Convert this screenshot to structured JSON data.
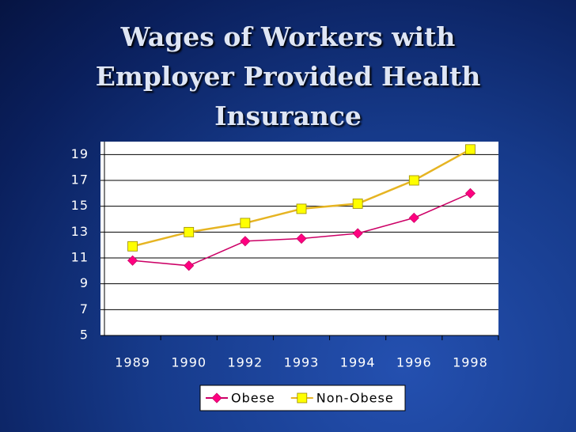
{
  "chart_data": {
    "type": "line",
    "title": "Wages of Workers with Employer Provided Health Insurance",
    "categories": [
      "1989",
      "1990",
      "1992",
      "1993",
      "1994",
      "1996",
      "1998"
    ],
    "series": [
      {
        "name": "Obese",
        "color": "#cc0066",
        "marker_color": "#ff0080",
        "marker": "diamond",
        "values": [
          10.8,
          10.4,
          12.3,
          12.5,
          12.9,
          14.1,
          16.0
        ]
      },
      {
        "name": "Non-Obese",
        "color": "#e6b422",
        "marker_color": "#ffff00",
        "marker": "square",
        "values": [
          11.9,
          13.0,
          13.7,
          14.8,
          15.2,
          17.0,
          19.4
        ]
      }
    ],
    "ylim": [
      5,
      20
    ],
    "yticks": [
      5,
      7,
      9,
      11,
      13,
      15,
      17,
      19
    ],
    "grid": true,
    "legend": "bottom"
  }
}
